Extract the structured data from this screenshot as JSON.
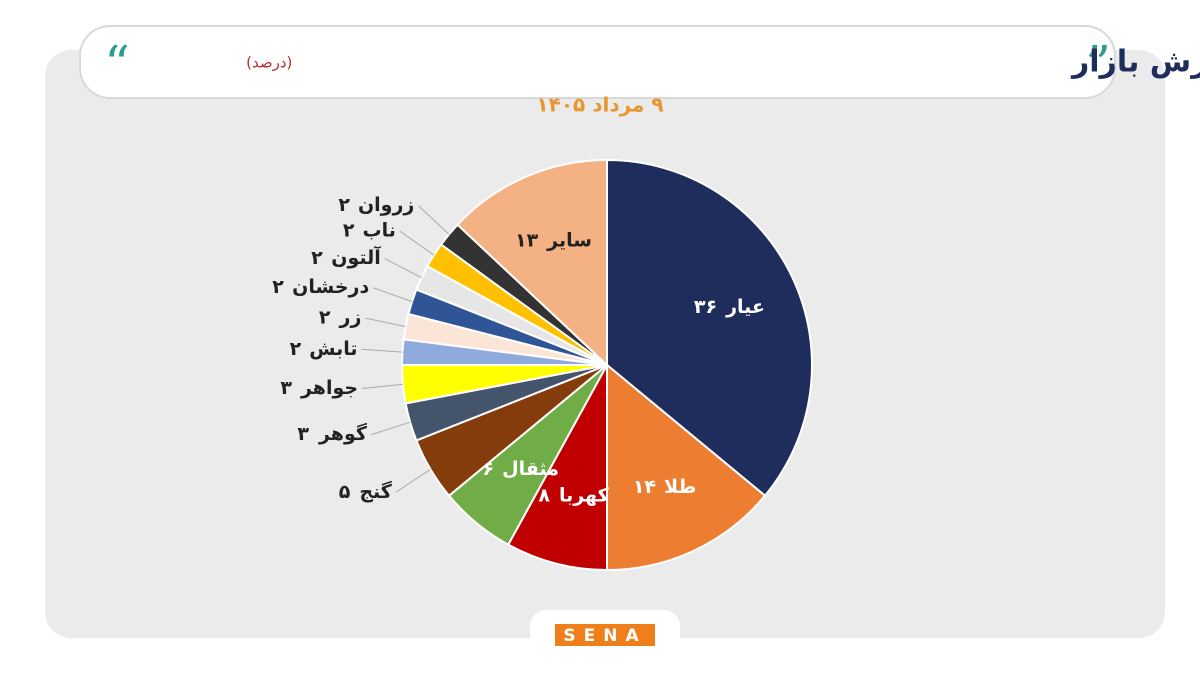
{
  "chart_data": {
    "type": "pie",
    "title": "سهم هریک از صندوق‌های طلا از مجموع ارزش بازار",
    "title_note": "(درصد)",
    "subtitle": "۹ مرداد ۱۴۰۵",
    "categories": [
      "عیار",
      "طلا",
      "کهربا",
      "مثقال",
      "گنج",
      "گوهر",
      "جواهر",
      "تابش",
      "زر",
      "درخشان",
      "آلتون",
      "ناب",
      "زروان",
      "سایر"
    ],
    "values": [
      36,
      14,
      8,
      6,
      5,
      3,
      3,
      2,
      2,
      2,
      2,
      2,
      2,
      13
    ],
    "value_labels": [
      "۳۶",
      "۱۴",
      "۸",
      "۶",
      "۵",
      "۳",
      "۳",
      "۲",
      "۲",
      "۲",
      "۲",
      "۲",
      "۲",
      "۱۳"
    ],
    "colors": [
      "#1f2d5c",
      "#ed7d31",
      "#c00000",
      "#70ad47",
      "#843c0c",
      "#44546a",
      "#ffff00",
      "#8faadc",
      "#fbe5d6",
      "#2f5597",
      "#e7e6e6",
      "#ffc000",
      "#333333",
      "#f4b183"
    ],
    "source": "SENA"
  }
}
